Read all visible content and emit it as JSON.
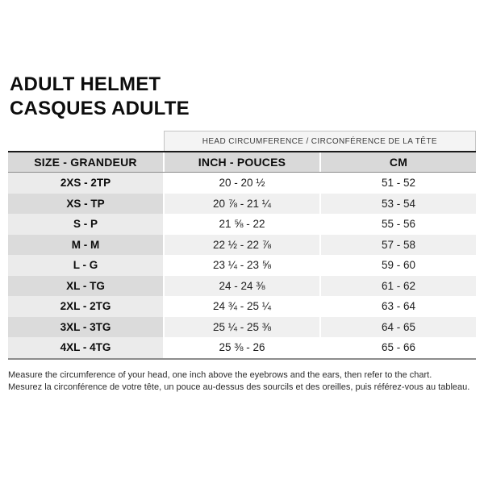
{
  "title": {
    "line1": "ADULT HELMET",
    "line2": "CASQUES ADULTE"
  },
  "table": {
    "span_header": "HEAD CIRCUMFERENCE / CIRCONFÉRENCE DE LA TÊTE",
    "columns": [
      "SIZE - GRANDEUR",
      "INCH - POUCES",
      "CM"
    ],
    "rows": [
      {
        "size": "2XS - 2TP",
        "inch": "20 - 20 ½",
        "cm": "51 - 52"
      },
      {
        "size": "XS - TP",
        "inch": "20 ⅞ - 21 ¼",
        "cm": "53 - 54"
      },
      {
        "size": "S - P",
        "inch": "21 ⅝ - 22",
        "cm": "55 - 56"
      },
      {
        "size": "M - M",
        "inch": "22 ½ - 22 ⅞",
        "cm": "57 - 58"
      },
      {
        "size": "L - G",
        "inch": "23 ¼ - 23 ⅝",
        "cm": "59 - 60"
      },
      {
        "size": "XL - TG",
        "inch": "24 - 24 ⅜",
        "cm": "61 - 62"
      },
      {
        "size": "2XL - 2TG",
        "inch": "24 ¾ - 25 ¼",
        "cm": "63 - 64"
      },
      {
        "size": "3XL - 3TG",
        "inch": "25 ¼ - 25 ⅜",
        "cm": "64 - 65"
      },
      {
        "size": "4XL - 4TG",
        "inch": "25 ⅜ - 26",
        "cm": "65 - 66"
      }
    ]
  },
  "footer": {
    "line1": "Measure the circumference of your head, one inch above the eyebrows and the ears, then refer to the chart.",
    "line2": "Mesurez la circonférence de votre tête, un pouce au-dessus des sourcils et des oreilles, puis référez-vous au tableau."
  },
  "colors": {
    "header_row_bg": "#d9d9d9",
    "stripe_bg": "#f0f0f0",
    "size_col_bg": "#ebebeb",
    "size_col_stripe_bg": "#dbdbdb",
    "span_header_bg": "#f4f4f4",
    "rule_black": "#1a1a1a",
    "rule_gray": "#8c8c8c"
  }
}
